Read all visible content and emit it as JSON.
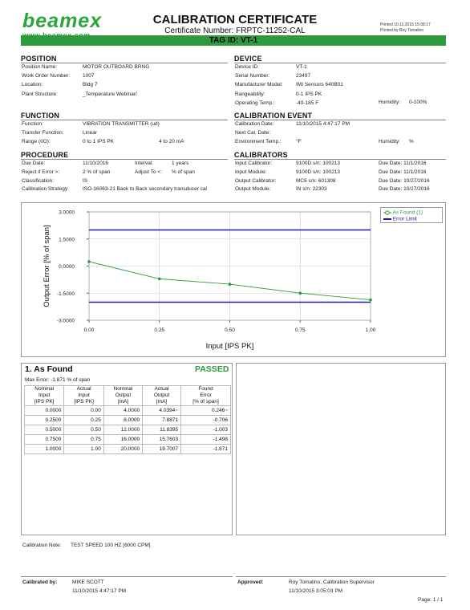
{
  "header": {
    "logo_text": "beamex",
    "logo_url": "www.beamex.com",
    "title": "CALIBRATION CERTIFICATE",
    "certificate_number": "Certificate Number: FRPTC-11252-CAL",
    "printed": "Printed 10.11.2015 15:08:17",
    "printed_by": "Printed by Roy Tomalino",
    "tag_id": "TAG ID: VT-1"
  },
  "position": {
    "heading": "POSITION",
    "rows": [
      {
        "label": "Position Name:",
        "value": "MOTOR OUTBOARD BRNG"
      },
      {
        "label": "Work Order Number:",
        "value": "1007"
      },
      {
        "label": "Location:",
        "value": "Bldg 7"
      },
      {
        "label": "Plant Structure:",
        "value": "_Temperature Webinar/"
      }
    ]
  },
  "device": {
    "heading": "DEVICE",
    "rows": [
      {
        "label": "Device ID:",
        "value": "VT-1"
      },
      {
        "label": "Serial Number:",
        "value": "23497"
      },
      {
        "label": "Manufacturer Model:",
        "value": "IMI Sensors 640B01"
      },
      {
        "label": "Rangeability:",
        "value": "0-1 IPS PK"
      },
      {
        "label": "Operating Temp.:",
        "value": "-40-185 F"
      }
    ],
    "humidity_label": "Humidity:",
    "humidity_value": "0-100%"
  },
  "function": {
    "heading": "FUNCTION",
    "rows": [
      {
        "label": "Function:",
        "value": "VIBRATION TRANSMITTER (ud)"
      },
      {
        "label": "Transfer Function:",
        "value": "Linear"
      },
      {
        "label": "Range (I/O):",
        "value": "0 to 1 IPS PK"
      }
    ],
    "range_out": "4 to 20 mA"
  },
  "cal_event": {
    "heading": "CALIBRATION EVENT",
    "rows": [
      {
        "label": "Calibration Date:",
        "value": "11/10/2015 4:47:17 PM"
      },
      {
        "label": "Next Cal. Date:",
        "value": ""
      },
      {
        "label": "Environment Temp.:",
        "value": "°F"
      }
    ],
    "humidity_label": "Humidity:",
    "humidity_value": "%"
  },
  "procedure": {
    "heading": "PROCEDURE",
    "rows": [
      {
        "label": "Due Date:",
        "value": "11/10/2016"
      },
      {
        "label": "Reject if Error >:",
        "value": "2 % of span"
      },
      {
        "label": "Classification:",
        "value": "IS"
      },
      {
        "label": "Calibration Strategy:",
        "value": "ISO-16063-21 Back to Back secondary transducer cal"
      }
    ],
    "interval_label": "Interval:",
    "interval_value": "1 years",
    "adjust_label": "Adjust To <:",
    "adjust_value": "% of span"
  },
  "calibrators": {
    "heading": "CALIBRATORS",
    "rows": [
      {
        "label": "Input Calibrator:",
        "value": "9100D s/n: 100213",
        "due": "Due Date: 11/1/2016"
      },
      {
        "label": "Input Module:",
        "value": "9100D s/n: 100213",
        "due": "Due Date: 11/1/2016"
      },
      {
        "label": "Output Calibrator:",
        "value": "MC6 s/n: 601308",
        "due": "Due Date: 10/27/2016"
      },
      {
        "label": "Output Module:",
        "value": "IN s/n: 22303",
        "due": "Due Date: 10/27/2016"
      }
    ]
  },
  "chart_data": {
    "type": "line",
    "xlabel": "Input [IPS PK]",
    "ylabel": "Output Error [% of span]",
    "xlim": [
      0,
      1
    ],
    "ylim": [
      -3,
      3
    ],
    "x_ticks": [
      "0.00",
      "0.25",
      "0.50",
      "0.75",
      "1.00"
    ],
    "y_ticks": [
      "3.0000",
      "1.5000",
      "0.0000",
      "-1.5000",
      "-3.0000"
    ],
    "series": [
      {
        "name": "As Found (1)",
        "x": [
          0,
          0.25,
          0.5,
          0.75,
          1.0
        ],
        "y": [
          0.246,
          -0.706,
          -1.003,
          -1.498,
          -1.871
        ],
        "color": "#2e9a3d"
      },
      {
        "name": "Error Limit",
        "x": [
          0,
          1
        ],
        "y": [
          2,
          2
        ],
        "color": "#1a1aa8"
      },
      {
        "name": "",
        "x": [
          0,
          1
        ],
        "y": [
          -2,
          -2
        ],
        "color": "#1a1aa8"
      }
    ],
    "legend": "top-right",
    "grid": true
  },
  "as_found": {
    "heading": "1. As Found",
    "status": "PASSED",
    "max_error": "Max Error: -1.871 % of span",
    "columns": [
      [
        "Nominal",
        "Input",
        "[IPS PK]"
      ],
      [
        "Actual",
        "Input",
        "[IPS PK]"
      ],
      [
        "Nominal",
        "Output",
        "[mA]"
      ],
      [
        "Actual",
        "Output",
        "[mA]"
      ],
      [
        "Found",
        "Error",
        "[% of span]"
      ]
    ],
    "rows": [
      [
        "0.0000",
        "0.00",
        "4.0000",
        "4.0394~",
        "0.246~"
      ],
      [
        "0.2500",
        "0.25",
        "8.0000",
        "7.8871",
        "-0.706"
      ],
      [
        "0.5000",
        "0.50",
        "12.0000",
        "11.8395",
        "-1.003"
      ],
      [
        "0.7500",
        "0.75",
        "16.0000",
        "15.7603",
        "-1.498"
      ],
      [
        "1.0000",
        "1.00",
        "20.0000",
        "19.7007",
        "-1.871"
      ]
    ]
  },
  "note": {
    "label": "Calibration Note:",
    "value": "TEST SPEED 100 HZ [6000 CPM]"
  },
  "signatures": {
    "calibrated_label": "Calibrated by:",
    "calibrated_name": "MIKE SCOTT",
    "calibrated_date": "11/10/2015 4:47:17 PM",
    "approved_label": "Approved:",
    "approved_name": "Roy Tomalino, Calibration Supervisor",
    "approved_date": "11/10/2015 3:05:03 PM"
  },
  "page": "Page: 1 / 1"
}
